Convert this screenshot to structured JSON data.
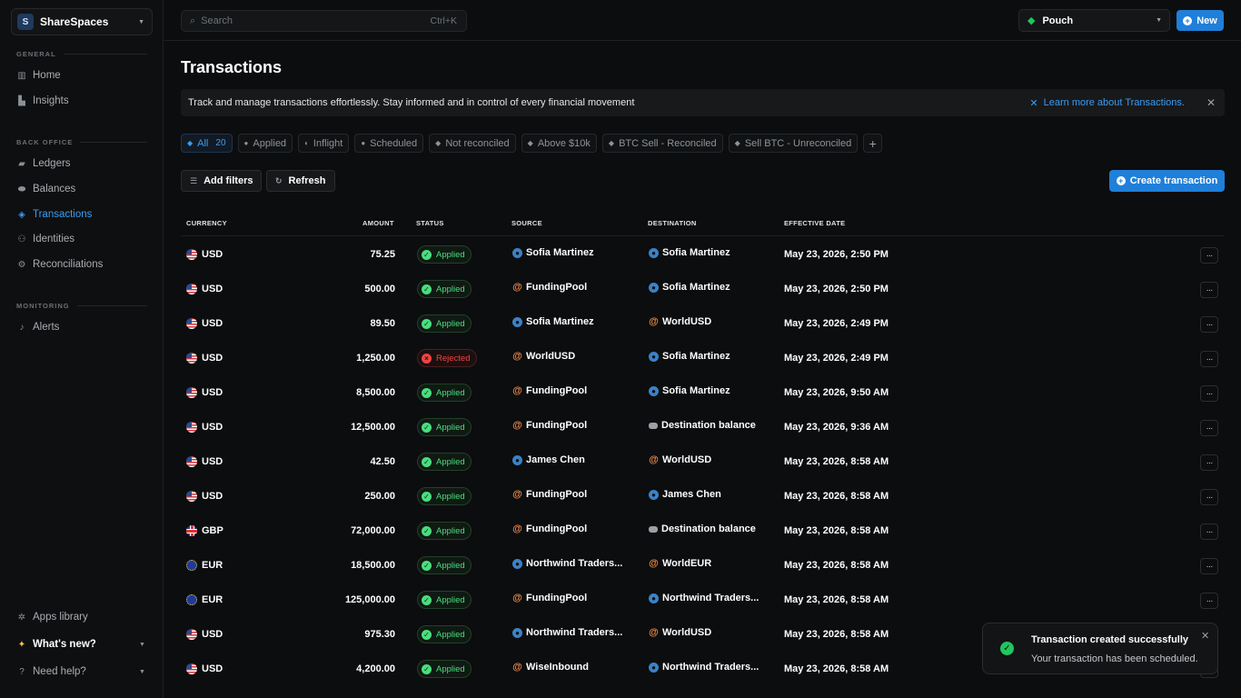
{
  "workspace": {
    "initial": "S",
    "name": "ShareSpaces"
  },
  "sidebar": {
    "sections": [
      {
        "title": "GENERAL"
      },
      {
        "title": "BACK OFFICE"
      },
      {
        "title": "MONITORING"
      }
    ],
    "items": [
      {
        "label": "Home",
        "icon": "bank-icon"
      },
      {
        "label": "Insights",
        "icon": "chart-icon"
      },
      {
        "label": "Ledgers",
        "icon": "folder-icon"
      },
      {
        "label": "Balances",
        "icon": "coins-icon"
      },
      {
        "label": "Transactions",
        "icon": "cube-icon",
        "active": true
      },
      {
        "label": "Identities",
        "icon": "users-icon"
      },
      {
        "label": "Reconciliations",
        "icon": "reconcile-icon"
      },
      {
        "label": "Alerts",
        "icon": "bell-icon"
      }
    ],
    "footer": [
      {
        "label": "Apps library",
        "icon": "apps-icon"
      },
      {
        "label": "What's new?",
        "icon": "sparkle-icon"
      },
      {
        "label": "Need help?",
        "icon": "help-icon"
      }
    ]
  },
  "topbar": {
    "search_placeholder": "Search",
    "search_shortcut": "Ctrl+K",
    "pouch_label": "Pouch",
    "new_label": "New"
  },
  "page": {
    "title": "Transactions",
    "banner_text": "Track and manage transactions effortlessly. Stay informed and in control of every financial movement",
    "banner_link": "Learn more about Transactions."
  },
  "tabs": [
    {
      "label": "All",
      "count": "20",
      "active": true
    },
    {
      "label": "Applied"
    },
    {
      "label": "Inflight"
    },
    {
      "label": "Scheduled"
    },
    {
      "label": "Not reconciled"
    },
    {
      "label": "Above $10k"
    },
    {
      "label": "BTC Sell - Reconciled"
    },
    {
      "label": "Sell BTC - Unreconciled"
    }
  ],
  "actions": {
    "add_filters": "Add filters",
    "refresh": "Refresh",
    "create_transaction": "Create transaction"
  },
  "table": {
    "headers": [
      "CURRENCY",
      "AMOUNT",
      "STATUS",
      "SOURCE",
      "DESTINATION",
      "EFFECTIVE DATE"
    ],
    "rows": [
      {
        "flag": "us",
        "currency": "USD",
        "amount": "75.25",
        "status": "Applied",
        "source": "Sofia Martinez",
        "source_type": "person",
        "destination": "Sofia Martinez",
        "dest_type": "person",
        "date": "May 23, 2026, 2:50 PM"
      },
      {
        "flag": "us",
        "currency": "USD",
        "amount": "500.00",
        "status": "Applied",
        "source": "FundingPool",
        "source_type": "at",
        "destination": "Sofia Martinez",
        "dest_type": "person",
        "date": "May 23, 2026, 2:50 PM"
      },
      {
        "flag": "us",
        "currency": "USD",
        "amount": "89.50",
        "status": "Applied",
        "source": "Sofia Martinez",
        "source_type": "person",
        "destination": "WorldUSD",
        "dest_type": "at",
        "date": "May 23, 2026, 2:49 PM"
      },
      {
        "flag": "us",
        "currency": "USD",
        "amount": "1,250.00",
        "status": "Rejected",
        "source": "WorldUSD",
        "source_type": "at",
        "destination": "Sofia Martinez",
        "dest_type": "person",
        "date": "May 23, 2026, 2:49 PM"
      },
      {
        "flag": "us",
        "currency": "USD",
        "amount": "8,500.00",
        "status": "Applied",
        "source": "FundingPool",
        "source_type": "at",
        "destination": "Sofia Martinez",
        "dest_type": "person",
        "date": "May 23, 2026, 9:50 AM"
      },
      {
        "flag": "us",
        "currency": "USD",
        "amount": "12,500.00",
        "status": "Applied",
        "source": "FundingPool",
        "source_type": "at",
        "destination": "Destination balance",
        "dest_type": "bal",
        "date": "May 23, 2026, 9:36 AM"
      },
      {
        "flag": "us",
        "currency": "USD",
        "amount": "42.50",
        "status": "Applied",
        "source": "James Chen",
        "source_type": "person",
        "destination": "WorldUSD",
        "dest_type": "at",
        "date": "May 23, 2026, 8:58 AM"
      },
      {
        "flag": "us",
        "currency": "USD",
        "amount": "250.00",
        "status": "Applied",
        "source": "FundingPool",
        "source_type": "at",
        "destination": "James Chen",
        "dest_type": "person",
        "date": "May 23, 2026, 8:58 AM"
      },
      {
        "flag": "gb",
        "currency": "GBP",
        "amount": "72,000.00",
        "status": "Applied",
        "source": "FundingPool",
        "source_type": "at",
        "destination": "Destination balance",
        "dest_type": "bal",
        "date": "May 23, 2026, 8:58 AM"
      },
      {
        "flag": "eu",
        "currency": "EUR",
        "amount": "18,500.00",
        "status": "Applied",
        "source": "Northwind Traders...",
        "source_type": "person",
        "destination": "WorldEUR",
        "dest_type": "at",
        "date": "May 23, 2026, 8:58 AM"
      },
      {
        "flag": "eu",
        "currency": "EUR",
        "amount": "125,000.00",
        "status": "Applied",
        "source": "FundingPool",
        "source_type": "at",
        "destination": "Northwind Traders...",
        "dest_type": "person",
        "date": "May 23, 2026, 8:58 AM"
      },
      {
        "flag": "us",
        "currency": "USD",
        "amount": "975.30",
        "status": "Applied",
        "source": "Northwind Traders...",
        "source_type": "person",
        "destination": "WorldUSD",
        "dest_type": "at",
        "date": "May 23, 2026, 8:58 AM"
      },
      {
        "flag": "us",
        "currency": "USD",
        "amount": "4,200.00",
        "status": "Applied",
        "source": "WiseInbound",
        "source_type": "at",
        "destination": "Northwind Traders...",
        "dest_type": "person",
        "date": "May 23, 2026, 8:58 AM"
      }
    ]
  },
  "toast": {
    "title": "Transaction created successfully",
    "message": "Your transaction has been scheduled."
  },
  "colors": {
    "accent": "#1f7fd9",
    "success": "#4ade80",
    "danger": "#ef4444",
    "at_icon": "#f08a4b"
  }
}
